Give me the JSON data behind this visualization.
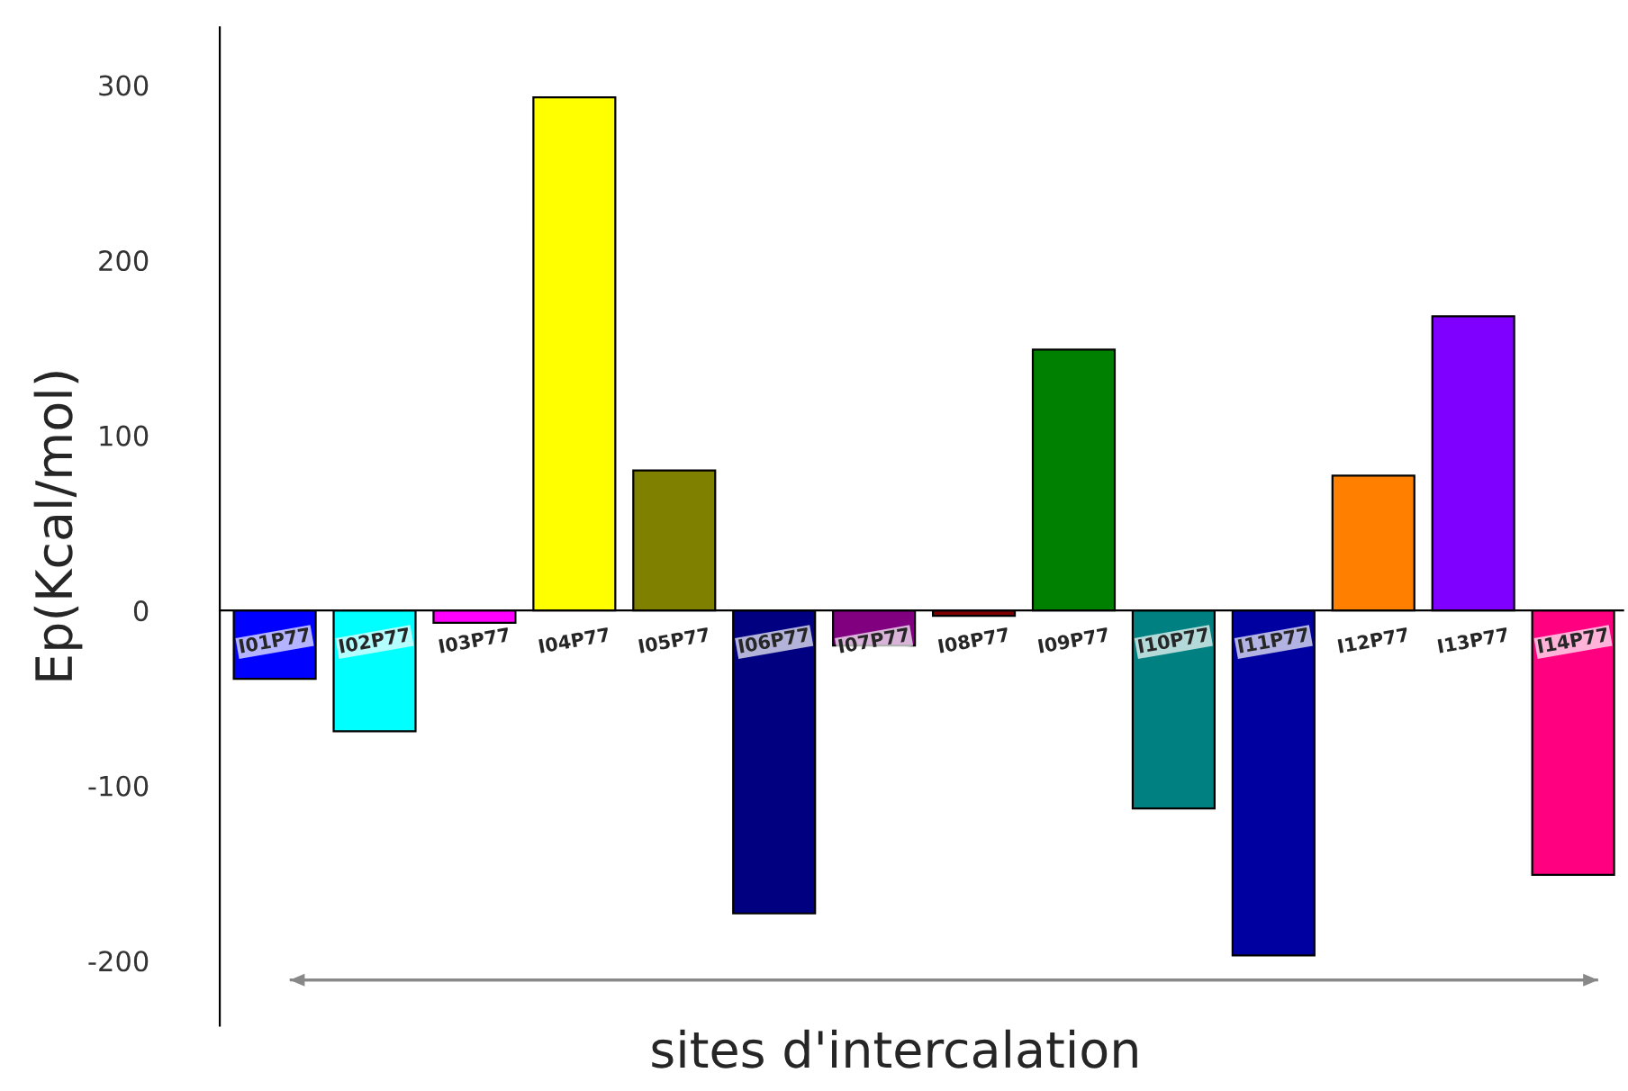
{
  "chart_data": {
    "type": "bar",
    "xlabel": "sites d'intercalation",
    "ylabel": "Ep(Kcal/mol)",
    "categories": [
      "I01P77",
      "I02P77",
      "I03P77",
      "I04P77",
      "I05P77",
      "I06P77",
      "I07P77",
      "I08P77",
      "I09P77",
      "I10P77",
      "I11P77",
      "I12P77",
      "I13P77",
      "I14P77"
    ],
    "values": [
      -39,
      -69,
      -7,
      293,
      80,
      -173,
      -20,
      -3,
      149,
      -113,
      -197,
      77,
      168,
      -151
    ],
    "colors": [
      "#0000ff",
      "#00ffff",
      "#ff00ff",
      "#ffff00",
      "#808000",
      "#000080",
      "#800080",
      "#800000",
      "#008000",
      "#008080",
      "#0000a0",
      "#ff8000",
      "#8000ff",
      "#ff0080"
    ],
    "ylim": [
      -237,
      333
    ],
    "yticks": [
      -200,
      -100,
      0,
      100,
      200,
      300
    ],
    "grid": false
  }
}
